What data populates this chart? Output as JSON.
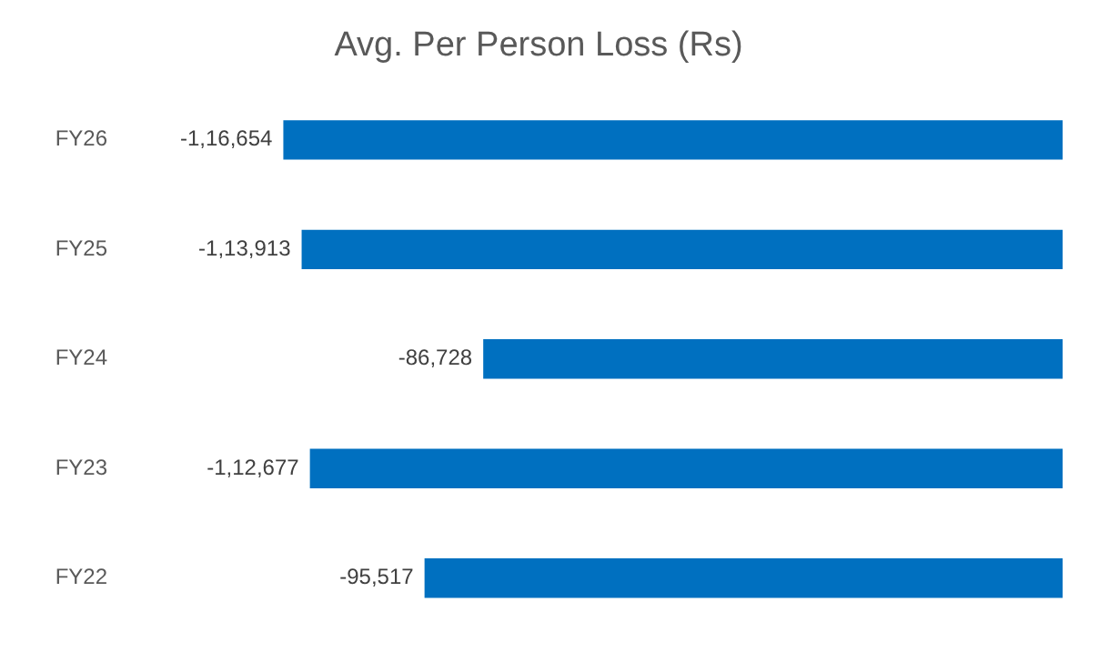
{
  "chart_data": {
    "type": "bar",
    "orientation": "horizontal",
    "title": "Avg. Per Person Loss (Rs)",
    "categories": [
      "FY26",
      "FY25",
      "FY24",
      "FY23",
      "FY22"
    ],
    "values": [
      -116654,
      -113913,
      -86728,
      -112677,
      -95517
    ],
    "value_labels": [
      "-1,16,654",
      "-1,13,913",
      "-86,728",
      "-1,12,677",
      "-95,517"
    ],
    "color": "#0070c0",
    "grid": false,
    "legend": false
  }
}
